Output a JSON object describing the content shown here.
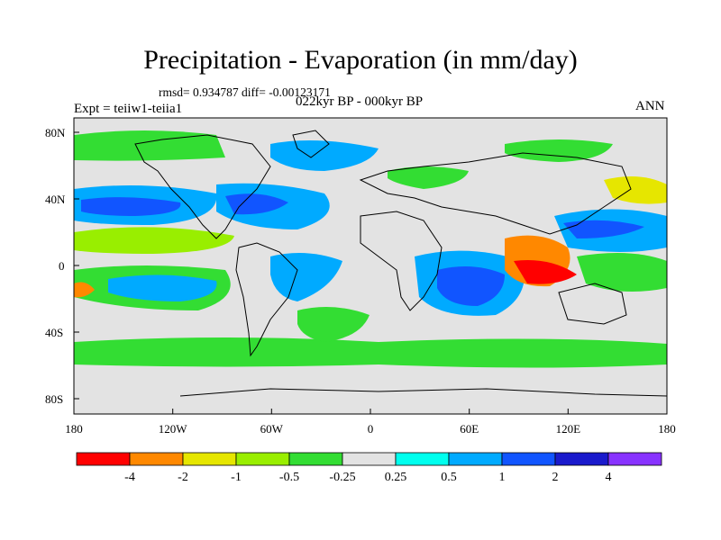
{
  "title": "Precipitation - Evaporation (in mm/day)",
  "stats": "rmsd= 0.934787 diff= -0.00123171",
  "experiment": "Expt = teiiw1-teiia1",
  "period": "022kyr BP - 000kyr BP",
  "season": "ANN",
  "map": {
    "lat_labels": [
      "80N",
      "40N",
      "0",
      "40S",
      "80S"
    ],
    "lon_labels": [
      "180",
      "120W",
      "60W",
      "0",
      "60E",
      "120E",
      "180"
    ]
  },
  "colorbar": {
    "colors": [
      "#ff0000",
      "#ff8800",
      "#e6e600",
      "#99ee00",
      "#33dd33",
      "#e3e3e3",
      "#00ffee",
      "#00aaff",
      "#1155ff",
      "#1a1acc",
      "#8833ff"
    ],
    "labels": [
      "-4",
      "-2",
      "-1",
      "-0.5",
      "-0.25",
      "0.25",
      "0.5",
      "1",
      "2",
      "4"
    ]
  }
}
